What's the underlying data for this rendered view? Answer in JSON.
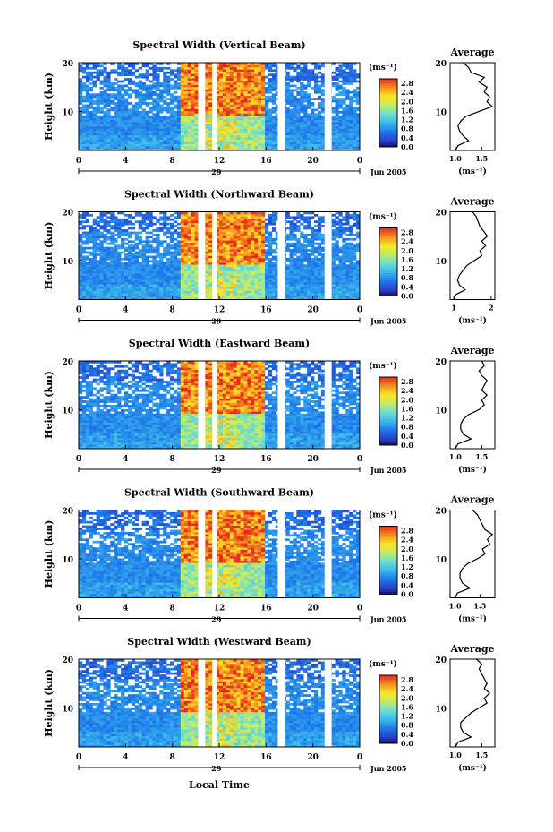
{
  "figure": {
    "xlabel": "Local Time",
    "date_label": "Jun 2005",
    "day_label": "29",
    "ylabel": "Height (km)",
    "avg_title": "Average",
    "unit_label": "(ms⁻¹)",
    "avg_xlabel": "(ms⁻¹)",
    "colorbar_ticks": [
      "2.8",
      "2.4",
      "2.0",
      "1.6",
      "1.2",
      "0.8",
      "0.4",
      "0.0"
    ],
    "x_ticks": [
      "0",
      "4",
      "8",
      "12",
      "16",
      "20",
      "0"
    ],
    "y_ticks": [
      "20",
      "10"
    ]
  },
  "chart_data": [
    {
      "type": "heatmap",
      "title": "Spectral Width (Vertical Beam)",
      "xlabel": "Local Time",
      "ylabel": "Height (km)",
      "x_range_hours": [
        0,
        24
      ],
      "y_range_km": [
        2,
        20
      ],
      "color_range": [
        0.0,
        3.0
      ],
      "gaps_hours": [
        [
          10.2,
          10.8
        ],
        [
          11.4,
          11.8
        ],
        [
          17.0,
          17.6
        ],
        [
          21.0,
          21.6
        ]
      ],
      "avg_ticks": [
        "1.0",
        "1.5"
      ],
      "avg_range": [
        0.9,
        1.75
      ],
      "avg_profile": {
        "height_km": [
          2,
          3,
          4,
          5,
          6,
          7,
          8,
          9,
          10,
          11,
          12,
          13,
          14,
          15,
          16,
          17,
          18,
          19,
          20
        ],
        "width": [
          1.0,
          1.05,
          1.25,
          1.15,
          1.08,
          1.05,
          1.1,
          1.2,
          1.45,
          1.7,
          1.6,
          1.65,
          1.55,
          1.6,
          1.45,
          1.55,
          1.3,
          1.25,
          1.15
        ]
      }
    },
    {
      "type": "heatmap",
      "title": "Spectral Width (Northward Beam)",
      "xlabel": "Local Time",
      "ylabel": "Height (km)",
      "x_range_hours": [
        0,
        24
      ],
      "y_range_km": [
        2,
        20
      ],
      "color_range": [
        0.0,
        3.0
      ],
      "gaps_hours": [
        [
          10.2,
          10.8
        ],
        [
          11.4,
          11.8
        ],
        [
          17.0,
          17.6
        ],
        [
          21.0,
          21.6
        ]
      ],
      "avg_ticks": [
        "1",
        "2"
      ],
      "avg_range": [
        0.9,
        2.1
      ],
      "avg_profile": {
        "height_km": [
          2,
          3,
          4,
          5,
          6,
          7,
          8,
          9,
          10,
          11,
          12,
          13,
          14,
          15,
          16,
          17,
          18,
          19,
          20
        ],
        "width": [
          1.0,
          1.05,
          1.3,
          1.15,
          1.1,
          1.15,
          1.25,
          1.35,
          1.55,
          1.75,
          1.7,
          1.85,
          1.75,
          1.9,
          1.8,
          1.7,
          1.65,
          1.6,
          1.5
        ]
      }
    },
    {
      "type": "heatmap",
      "title": "Spectral Width (Eastward Beam)",
      "xlabel": "Local Time",
      "ylabel": "Height (km)",
      "x_range_hours": [
        0,
        24
      ],
      "y_range_km": [
        2,
        20
      ],
      "color_range": [
        0.0,
        3.0
      ],
      "gaps_hours": [
        [
          10.2,
          10.8
        ],
        [
          11.4,
          11.8
        ],
        [
          17.0,
          17.6
        ],
        [
          21.0,
          21.6
        ]
      ],
      "avg_ticks": [
        "1.0",
        "1.5"
      ],
      "avg_range": [
        0.9,
        1.75
      ],
      "avg_profile": {
        "height_km": [
          2,
          3,
          4,
          5,
          6,
          7,
          8,
          9,
          10,
          11,
          12,
          13,
          14,
          15,
          16,
          17,
          18,
          19,
          20
        ],
        "width": [
          1.0,
          1.05,
          1.3,
          1.15,
          1.1,
          1.1,
          1.15,
          1.25,
          1.45,
          1.55,
          1.5,
          1.6,
          1.5,
          1.55,
          1.6,
          1.5,
          1.45,
          1.55,
          1.5
        ]
      }
    },
    {
      "type": "heatmap",
      "title": "Spectral Width (Southward Beam)",
      "xlabel": "Local Time",
      "ylabel": "Height (km)",
      "x_range_hours": [
        0,
        24
      ],
      "y_range_km": [
        2,
        20
      ],
      "color_range": [
        0.0,
        3.0
      ],
      "gaps_hours": [
        [
          10.2,
          10.8
        ],
        [
          11.4,
          11.8
        ],
        [
          17.0,
          17.6
        ],
        [
          21.0,
          21.6
        ]
      ],
      "avg_ticks": [
        "1.0",
        "1.5"
      ],
      "avg_range": [
        0.9,
        1.8
      ],
      "avg_profile": {
        "height_km": [
          2,
          3,
          4,
          5,
          6,
          7,
          8,
          9,
          10,
          11,
          12,
          13,
          14,
          15,
          16,
          17,
          18,
          19,
          20
        ],
        "width": [
          1.0,
          1.05,
          1.3,
          1.15,
          1.1,
          1.1,
          1.15,
          1.25,
          1.45,
          1.6,
          1.55,
          1.7,
          1.65,
          1.75,
          1.6,
          1.55,
          1.5,
          1.45,
          1.35
        ]
      }
    },
    {
      "type": "heatmap",
      "title": "Spectral Width (Westward Beam)",
      "xlabel": "Local Time",
      "ylabel": "Height (km)",
      "x_range_hours": [
        0,
        24
      ],
      "y_range_km": [
        2,
        20
      ],
      "color_range": [
        0.0,
        3.0
      ],
      "gaps_hours": [
        [
          10.2,
          10.8
        ],
        [
          11.4,
          11.8
        ],
        [
          17.0,
          17.6
        ],
        [
          21.0,
          21.6
        ]
      ],
      "avg_ticks": [
        "1.0",
        "1.5"
      ],
      "avg_range": [
        0.9,
        1.75
      ],
      "avg_profile": {
        "height_km": [
          2,
          3,
          4,
          5,
          6,
          7,
          8,
          9,
          10,
          11,
          12,
          13,
          14,
          15,
          16,
          17,
          18,
          19,
          20
        ],
        "width": [
          1.0,
          1.05,
          1.3,
          1.15,
          1.1,
          1.1,
          1.2,
          1.3,
          1.45,
          1.6,
          1.55,
          1.65,
          1.55,
          1.6,
          1.55,
          1.5,
          1.45,
          1.5,
          1.4
        ]
      }
    }
  ]
}
